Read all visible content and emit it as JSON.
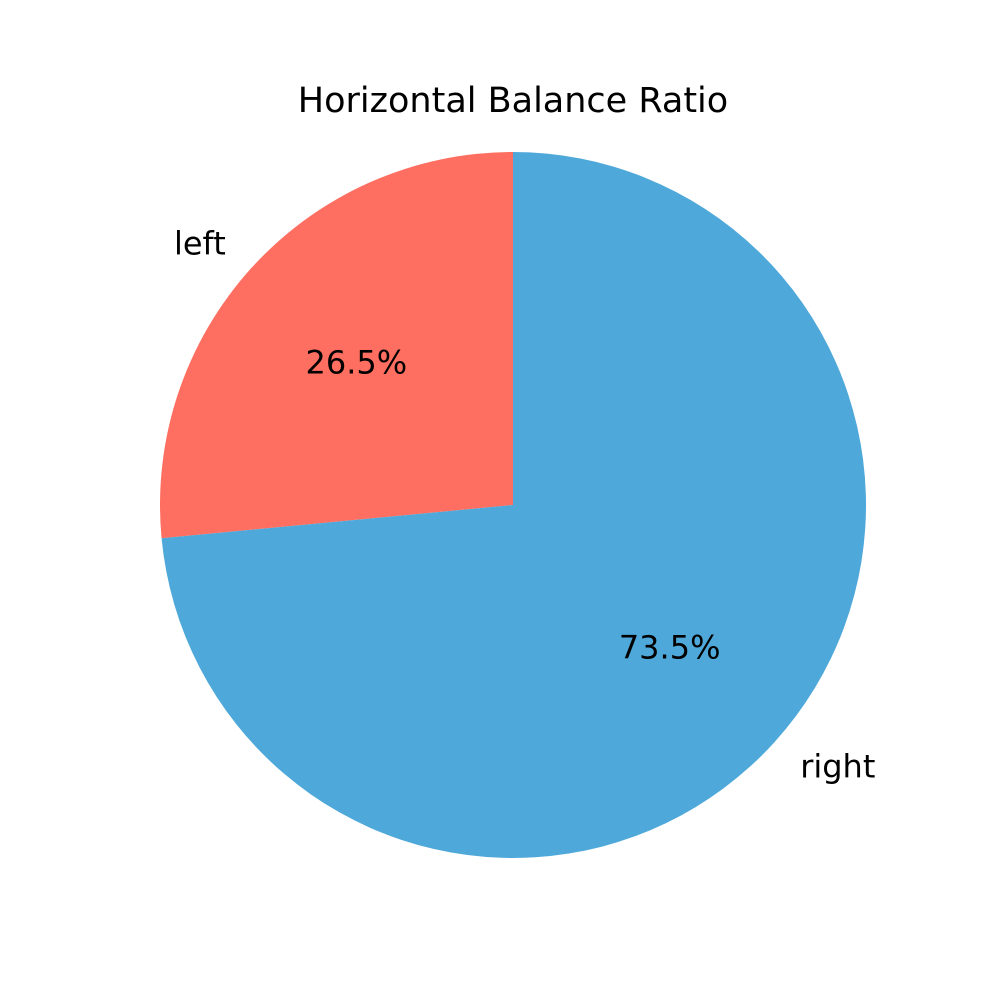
{
  "chart_data": {
    "type": "pie",
    "title": "Horizontal Balance Ratio",
    "slices": [
      {
        "label": "left",
        "value": 26.5,
        "pct_label": "26.5%",
        "color": "#ff6f61"
      },
      {
        "label": "right",
        "value": 73.5,
        "pct_label": "73.5%",
        "color": "#4ea8d9"
      }
    ],
    "counterclock": true,
    "legend": "none"
  }
}
